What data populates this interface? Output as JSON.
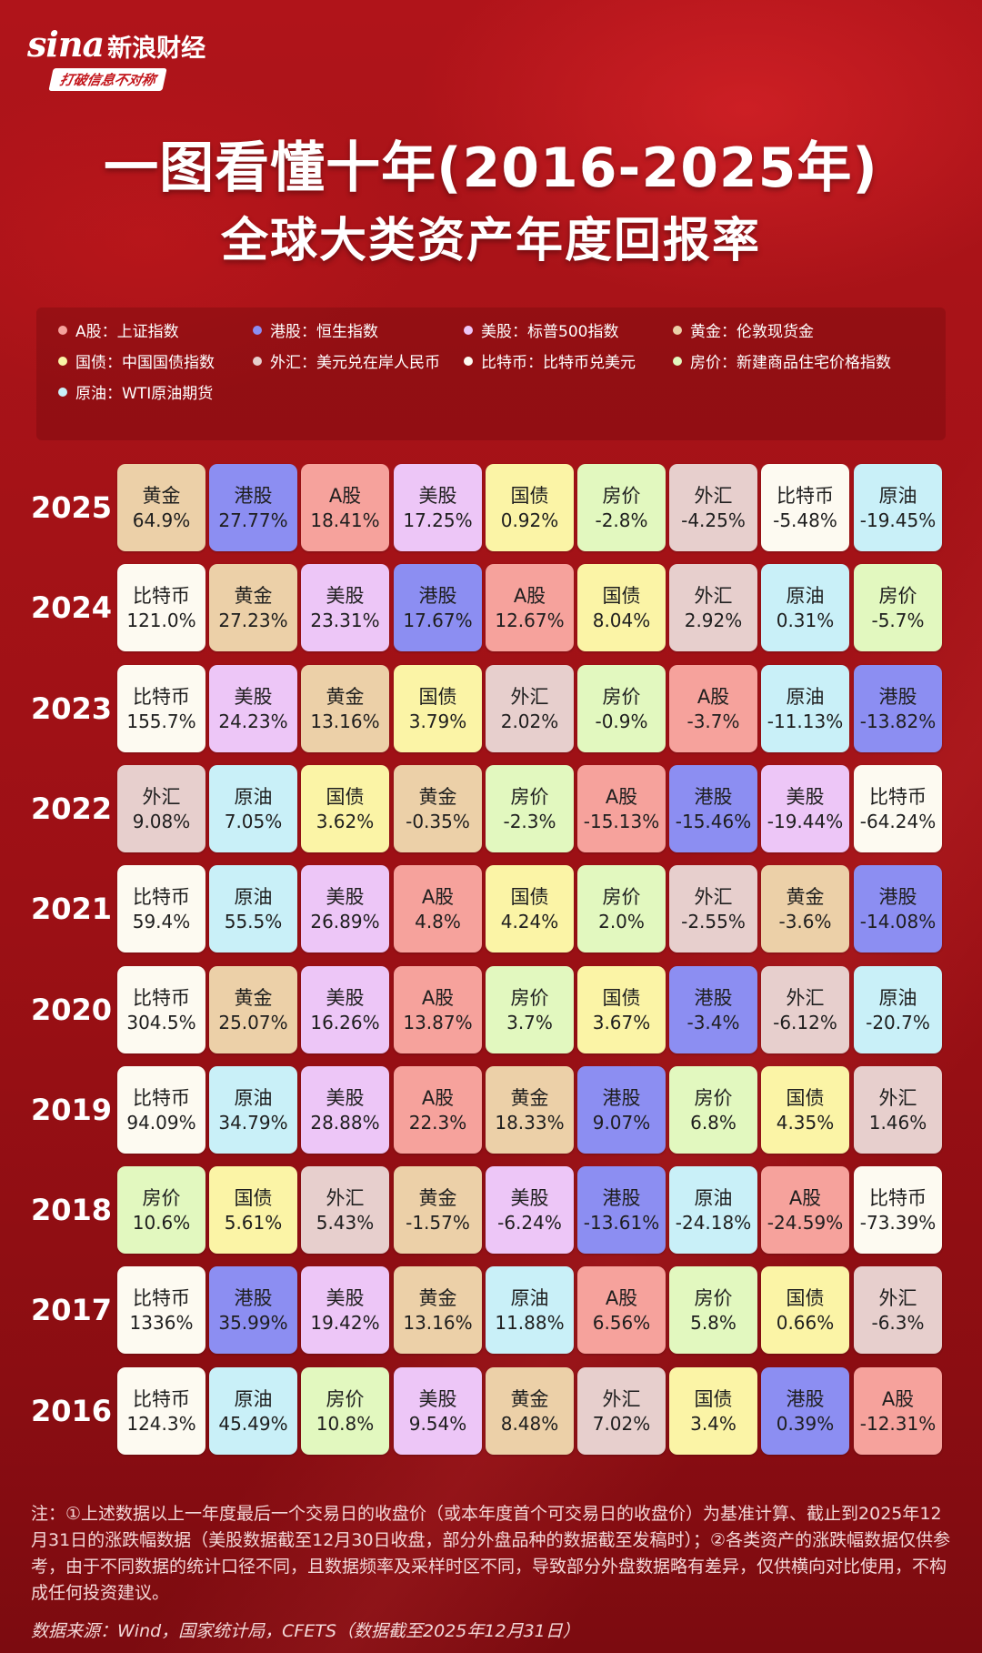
{
  "brand": {
    "logo_text": "sina",
    "name": "新浪财经",
    "slogan": "打破信息不对称"
  },
  "title_line1": "一图看懂十年(2016-2025年)",
  "title_line2": "全球大类资产年度回报率",
  "legend": [
    {
      "label": "A股：上证指数",
      "color": "#f6a29c"
    },
    {
      "label": "港股：恒生指数",
      "color": "#8c8ef2"
    },
    {
      "label": "美股：标普500指数",
      "color": "#edc6f7"
    },
    {
      "label": "黄金：伦敦现货金",
      "color": "#ecd0a8"
    },
    {
      "label": "国债：中国国债指数",
      "color": "#fbf4a6"
    },
    {
      "label": "外汇：美元兑在岸人民币",
      "color": "#e7cfcd"
    },
    {
      "label": "比特币：比特币兑美元",
      "color": "#fdfaf1"
    },
    {
      "label": "房价：新建商品住宅价格指数",
      "color": "#e2f8bf"
    },
    {
      "label": "原油：WTI原油期货",
      "color": "#c9f0f8"
    }
  ],
  "asset_colors": {
    "A股": "#f6a29c",
    "港股": "#8c8ef2",
    "美股": "#edc6f7",
    "黄金": "#ecd0a8",
    "国债": "#fbf4a6",
    "外汇": "#e7cfcd",
    "比特币": "#fdfaf1",
    "房价": "#e2f8bf",
    "原油": "#c9f0f8"
  },
  "chart_data": {
    "type": "table",
    "title": "一图看懂十年(2016-2025年) 全球大类资产年度回报率",
    "rows": [
      {
        "year": "2025",
        "cells": [
          {
            "asset": "黄金",
            "value": "64.9%"
          },
          {
            "asset": "港股",
            "value": "27.77%"
          },
          {
            "asset": "A股",
            "value": "18.41%"
          },
          {
            "asset": "美股",
            "value": "17.25%"
          },
          {
            "asset": "国债",
            "value": "0.92%"
          },
          {
            "asset": "房价",
            "value": "-2.8%"
          },
          {
            "asset": "外汇",
            "value": "-4.25%"
          },
          {
            "asset": "比特币",
            "value": "-5.48%"
          },
          {
            "asset": "原油",
            "value": "-19.45%"
          }
        ]
      },
      {
        "year": "2024",
        "cells": [
          {
            "asset": "比特币",
            "value": "121.0%"
          },
          {
            "asset": "黄金",
            "value": "27.23%"
          },
          {
            "asset": "美股",
            "value": "23.31%"
          },
          {
            "asset": "港股",
            "value": "17.67%"
          },
          {
            "asset": "A股",
            "value": "12.67%"
          },
          {
            "asset": "国债",
            "value": "8.04%"
          },
          {
            "asset": "外汇",
            "value": "2.92%"
          },
          {
            "asset": "原油",
            "value": "0.31%"
          },
          {
            "asset": "房价",
            "value": "-5.7%"
          }
        ]
      },
      {
        "year": "2023",
        "cells": [
          {
            "asset": "比特币",
            "value": "155.7%"
          },
          {
            "asset": "美股",
            "value": "24.23%"
          },
          {
            "asset": "黄金",
            "value": "13.16%"
          },
          {
            "asset": "国债",
            "value": "3.79%"
          },
          {
            "asset": "外汇",
            "value": "2.02%"
          },
          {
            "asset": "房价",
            "value": "-0.9%"
          },
          {
            "asset": "A股",
            "value": "-3.7%"
          },
          {
            "asset": "原油",
            "value": "-11.13%"
          },
          {
            "asset": "港股",
            "value": "-13.82%"
          }
        ]
      },
      {
        "year": "2022",
        "cells": [
          {
            "asset": "外汇",
            "value": "9.08%"
          },
          {
            "asset": "原油",
            "value": "7.05%"
          },
          {
            "asset": "国债",
            "value": "3.62%"
          },
          {
            "asset": "黄金",
            "value": "-0.35%"
          },
          {
            "asset": "房价",
            "value": "-2.3%"
          },
          {
            "asset": "A股",
            "value": "-15.13%"
          },
          {
            "asset": "港股",
            "value": "-15.46%"
          },
          {
            "asset": "美股",
            "value": "-19.44%"
          },
          {
            "asset": "比特币",
            "value": "-64.24%"
          }
        ]
      },
      {
        "year": "2021",
        "cells": [
          {
            "asset": "比特币",
            "value": "59.4%"
          },
          {
            "asset": "原油",
            "value": "55.5%"
          },
          {
            "asset": "美股",
            "value": "26.89%"
          },
          {
            "asset": "A股",
            "value": "4.8%"
          },
          {
            "asset": "国债",
            "value": "4.24%"
          },
          {
            "asset": "房价",
            "value": "2.0%"
          },
          {
            "asset": "外汇",
            "value": "-2.55%"
          },
          {
            "asset": "黄金",
            "value": "-3.6%"
          },
          {
            "asset": "港股",
            "value": "-14.08%"
          }
        ]
      },
      {
        "year": "2020",
        "cells": [
          {
            "asset": "比特币",
            "value": "304.5%"
          },
          {
            "asset": "黄金",
            "value": "25.07%"
          },
          {
            "asset": "美股",
            "value": "16.26%"
          },
          {
            "asset": "A股",
            "value": "13.87%"
          },
          {
            "asset": "房价",
            "value": "3.7%"
          },
          {
            "asset": "国债",
            "value": "3.67%"
          },
          {
            "asset": "港股",
            "value": "-3.4%"
          },
          {
            "asset": "外汇",
            "value": "-6.12%"
          },
          {
            "asset": "原油",
            "value": "-20.7%"
          }
        ]
      },
      {
        "year": "2019",
        "cells": [
          {
            "asset": "比特币",
            "value": "94.09%"
          },
          {
            "asset": "原油",
            "value": "34.79%"
          },
          {
            "asset": "美股",
            "value": "28.88%"
          },
          {
            "asset": "A股",
            "value": "22.3%"
          },
          {
            "asset": "黄金",
            "value": "18.33%"
          },
          {
            "asset": "港股",
            "value": "9.07%"
          },
          {
            "asset": "房价",
            "value": "6.8%"
          },
          {
            "asset": "国债",
            "value": "4.35%"
          },
          {
            "asset": "外汇",
            "value": "1.46%"
          }
        ]
      },
      {
        "year": "2018",
        "cells": [
          {
            "asset": "房价",
            "value": "10.6%"
          },
          {
            "asset": "国债",
            "value": "5.61%"
          },
          {
            "asset": "外汇",
            "value": "5.43%"
          },
          {
            "asset": "黄金",
            "value": "-1.57%"
          },
          {
            "asset": "美股",
            "value": "-6.24%"
          },
          {
            "asset": "港股",
            "value": "-13.61%"
          },
          {
            "asset": "原油",
            "value": "-24.18%"
          },
          {
            "asset": "A股",
            "value": "-24.59%"
          },
          {
            "asset": "比特币",
            "value": "-73.39%"
          }
        ]
      },
      {
        "year": "2017",
        "cells": [
          {
            "asset": "比特币",
            "value": "1336%"
          },
          {
            "asset": "港股",
            "value": "35.99%"
          },
          {
            "asset": "美股",
            "value": "19.42%"
          },
          {
            "asset": "黄金",
            "value": "13.16%"
          },
          {
            "asset": "原油",
            "value": "11.88%"
          },
          {
            "asset": "A股",
            "value": "6.56%"
          },
          {
            "asset": "房价",
            "value": "5.8%"
          },
          {
            "asset": "国债",
            "value": "0.66%"
          },
          {
            "asset": "外汇",
            "value": "-6.3%"
          }
        ]
      },
      {
        "year": "2016",
        "cells": [
          {
            "asset": "比特币",
            "value": "124.3%"
          },
          {
            "asset": "原油",
            "value": "45.49%"
          },
          {
            "asset": "房价",
            "value": "10.8%"
          },
          {
            "asset": "美股",
            "value": "9.54%"
          },
          {
            "asset": "黄金",
            "value": "8.48%"
          },
          {
            "asset": "外汇",
            "value": "7.02%"
          },
          {
            "asset": "国债",
            "value": "3.4%"
          },
          {
            "asset": "港股",
            "value": "0.39%"
          },
          {
            "asset": "A股",
            "value": "-12.31%"
          }
        ]
      }
    ]
  },
  "note": "注：①上述数据以上一年度最后一个交易日的收盘价（或本年度首个可交易日的收盘价）为基准计算、截止到2025年12月31日的涨跌幅数据（美股数据截至12月30日收盘，部分外盘品种的数据截至发稿时）；②各类资产的涨跌幅数据仅供参考，由于不同数据的统计口径不同，且数据频率及采样时区不同，导致部分外盘数据略有差异，仅供横向对比使用，不构成任何投资建议。",
  "source": "数据来源：Wind，国家统计局，CFETS（数据截至2025年12月31日）"
}
